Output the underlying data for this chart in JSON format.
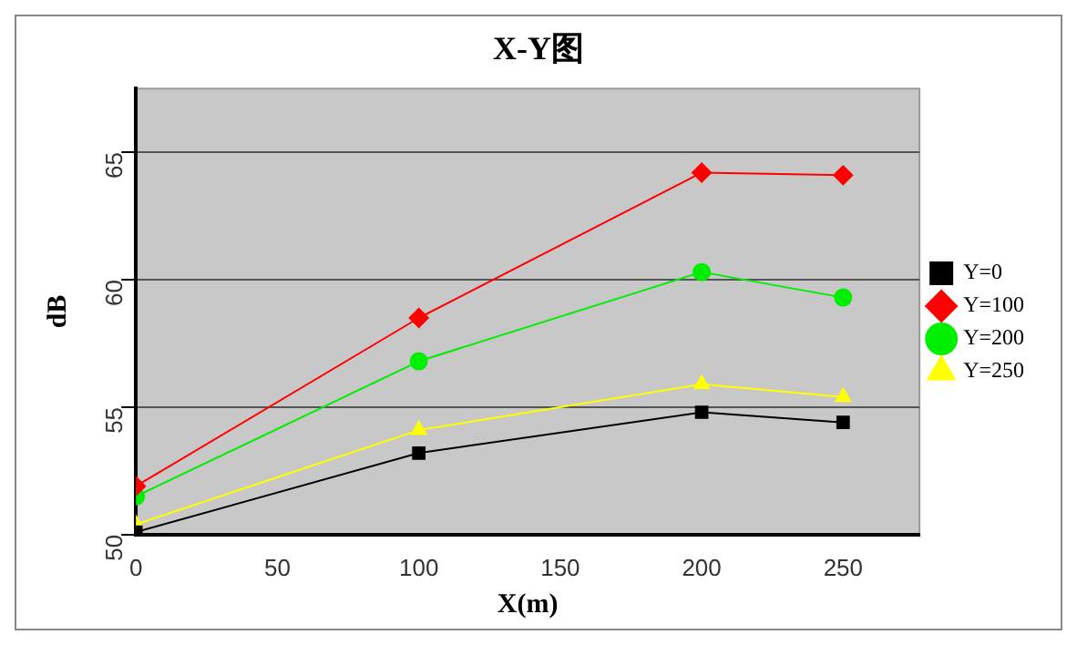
{
  "chart_data": {
    "type": "line",
    "title": "X-Y图",
    "xlabel": "X(m)",
    "ylabel": "dB",
    "x": [
      0,
      100,
      200,
      250
    ],
    "series": [
      {
        "name": "Y=0",
        "color": "#000000",
        "marker": "square",
        "values": [
          50.1,
          53.2,
          54.8,
          54.4
        ]
      },
      {
        "name": "Y=100",
        "color": "#ff0000",
        "marker": "diamond",
        "values": [
          51.9,
          58.5,
          64.2,
          64.1
        ]
      },
      {
        "name": "Y=200",
        "color": "#00ee00",
        "marker": "circle",
        "values": [
          51.5,
          56.8,
          60.3,
          59.3
        ]
      },
      {
        "name": "Y=250",
        "color": "#ffff00",
        "marker": "triangle",
        "values": [
          50.4,
          54.1,
          55.9,
          55.4
        ]
      }
    ],
    "xlim": [
      0,
      277
    ],
    "ylim": [
      50,
      67.5
    ],
    "xticks": [
      0,
      50,
      100,
      150,
      200,
      250
    ],
    "yticks": [
      50,
      55,
      60,
      65
    ],
    "grid": "y",
    "legend": "right",
    "line_style": "solid"
  }
}
